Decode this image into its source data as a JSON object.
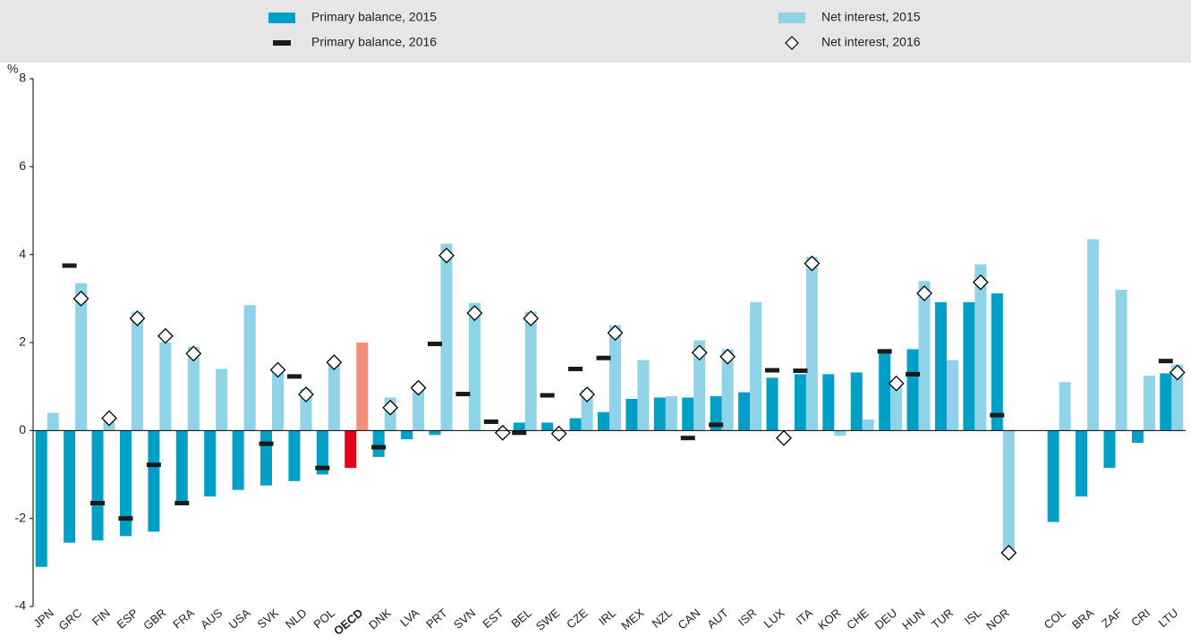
{
  "chart_data": {
    "type": "bar",
    "y_label": "%",
    "ylim": [
      -4,
      8
    ],
    "yticks": [
      -4,
      -2,
      0,
      2,
      4,
      6,
      8
    ],
    "grid": false,
    "legend": "top",
    "highlight": {
      "category": "OECD",
      "colors": [
        "#e3001b",
        "#f4907a"
      ]
    },
    "categories": [
      "JPN",
      "GRC",
      "FIN",
      "ESP",
      "GBR",
      "FRA",
      "AUS",
      "USA",
      "SVK",
      "NLD",
      "POL",
      "OECD",
      "DNK",
      "LVA",
      "PRT",
      "SVN",
      "EST",
      "BEL",
      "SWE",
      "CZE",
      "IRL",
      "MEX",
      "NZL",
      "CAN",
      "AUT",
      "ISR",
      "LUX",
      "ITA",
      "KOR",
      "CHE",
      "DEU",
      "HUN",
      "TUR",
      "ISL",
      "NOR",
      null,
      "COL",
      "BRA",
      "ZAF",
      "CRI",
      "LTU"
    ],
    "series": [
      {
        "name": "Primary balance, 2015",
        "color": "#00a0c6",
        "mark": "bar",
        "values": [
          -3.1,
          -2.55,
          -2.5,
          -2.4,
          -2.3,
          -1.65,
          -1.5,
          -1.35,
          -1.25,
          -1.15,
          -1.0,
          -0.85,
          -0.6,
          -0.2,
          -0.1,
          null,
          null,
          0.18,
          0.18,
          0.28,
          0.42,
          0.72,
          0.75,
          0.75,
          0.78,
          0.87,
          1.2,
          1.28,
          1.28,
          1.32,
          1.85,
          1.85,
          2.92,
          2.92,
          3.12,
          null,
          -2.08,
          -1.5,
          -0.85,
          -0.28,
          1.3
        ]
      },
      {
        "name": "Net interest, 2015",
        "color": "#8fd3e8",
        "mark": "bar",
        "values": [
          0.4,
          3.35,
          0.2,
          2.7,
          2.0,
          1.9,
          1.4,
          2.85,
          1.4,
          0.95,
          1.55,
          2.0,
          0.75,
          1.05,
          4.25,
          2.9,
          null,
          2.7,
          null,
          0.92,
          2.4,
          1.6,
          0.78,
          2.05,
          1.85,
          2.92,
          null,
          3.95,
          -0.12,
          0.25,
          1.15,
          3.4,
          1.6,
          3.78,
          -2.85,
          null,
          1.1,
          4.35,
          3.2,
          1.25,
          1.5
        ]
      },
      {
        "name": "Primary balance, 2016",
        "color": "#1a1a1a",
        "mark": "dash",
        "values": [
          null,
          3.75,
          -1.65,
          -2.0,
          -0.78,
          -1.65,
          null,
          null,
          -0.3,
          1.23,
          -0.85,
          null,
          -0.38,
          null,
          1.97,
          0.83,
          0.2,
          -0.05,
          0.8,
          1.4,
          1.65,
          null,
          null,
          -0.17,
          0.13,
          null,
          1.37,
          1.36,
          null,
          null,
          1.8,
          1.28,
          null,
          null,
          0.35,
          null,
          null,
          null,
          null,
          null,
          1.58
        ]
      },
      {
        "name": "Net interest, 2016",
        "color": "#ffffff",
        "mark": "diamond",
        "values": [
          null,
          3.0,
          0.28,
          2.55,
          2.15,
          1.75,
          null,
          null,
          1.38,
          0.82,
          1.55,
          null,
          0.52,
          0.97,
          3.98,
          2.67,
          -0.05,
          2.55,
          -0.07,
          0.82,
          2.22,
          null,
          null,
          1.77,
          1.68,
          null,
          -0.17,
          3.8,
          null,
          null,
          1.07,
          3.12,
          null,
          3.37,
          -2.78,
          null,
          null,
          null,
          null,
          null,
          1.32
        ]
      }
    ]
  }
}
